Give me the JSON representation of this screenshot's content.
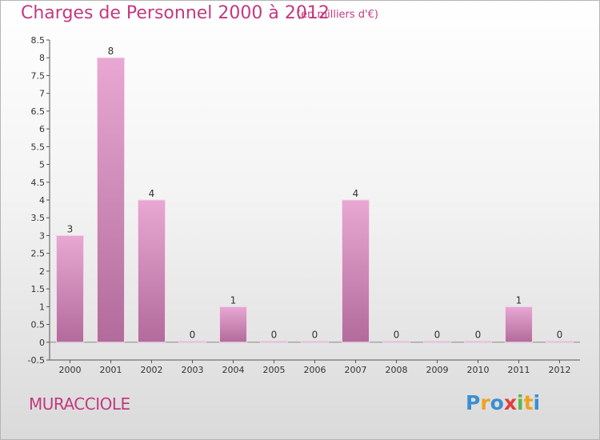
{
  "title": "Charges de Personnel 2000 à 2012",
  "unit_note": "(en milliers d'€)",
  "commune": "MURACCIOLE",
  "logo": {
    "letters": [
      "P",
      "r",
      "o",
      "x",
      "i",
      "t",
      "i"
    ],
    "colors": [
      "#3a8fd1",
      "#f0a120",
      "#3a8fd1",
      "#e33c3c",
      "#5ab84a",
      "#f0a120",
      "#3a8fd1"
    ]
  },
  "colors": {
    "accent": "#c23a7f",
    "bar_top": "#e8a8d3",
    "bar_bottom": "#b26b9b"
  },
  "chart_data": {
    "type": "bar",
    "categories": [
      "2000",
      "2001",
      "2002",
      "2003",
      "2004",
      "2005",
      "2006",
      "2007",
      "2008",
      "2009",
      "2010",
      "2011",
      "2012"
    ],
    "values": [
      3,
      8,
      4,
      0,
      1,
      0,
      0,
      4,
      0,
      0,
      0,
      1,
      0
    ],
    "value_labels": [
      "3",
      "8",
      "4",
      "0",
      "1",
      "0",
      "0",
      "4",
      "0",
      "0",
      "0",
      "1",
      "0"
    ],
    "title": "Charges de Personnel 2000 à 2012",
    "ylim": [
      -0.5,
      8.5
    ],
    "yticks": [
      -0.5,
      0,
      0.5,
      1,
      1.5,
      2,
      2.5,
      3,
      3.5,
      4,
      4.5,
      5,
      5.5,
      6,
      6.5,
      7,
      7.5,
      8,
      8.5
    ],
    "ytick_labels": [
      "-0.5",
      "0",
      "0.5",
      "1",
      "1.5",
      "2",
      "2.5",
      "3",
      "3.5",
      "4",
      "4.5",
      "5",
      "5.5",
      "6",
      "6.5",
      "7",
      "7.5",
      "8",
      "8.5"
    ],
    "grid": false
  }
}
